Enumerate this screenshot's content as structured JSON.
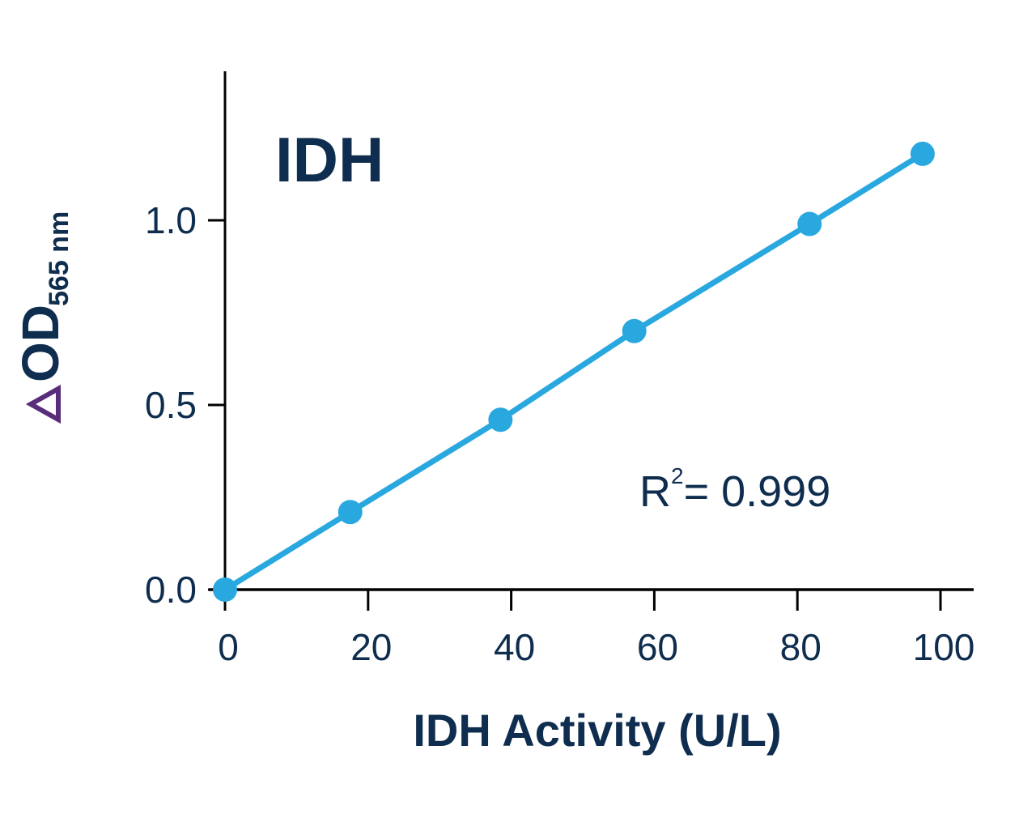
{
  "chart_data": {
    "type": "line",
    "title": "IDH",
    "xlabel": "IDH Activity (U/L)",
    "ylabel": "ΔOD 565 nm",
    "ylabel_parts": {
      "delta": "Δ",
      "main": "OD",
      "subscript": "565 nm"
    },
    "x_ticks": [
      "0",
      "20",
      "40",
      "60",
      "80",
      "100"
    ],
    "y_ticks": [
      "0.0",
      "0.5",
      "1.0"
    ],
    "xlim": [
      0,
      100
    ],
    "ylim": [
      0,
      1.4
    ],
    "grid": false,
    "legend": null,
    "series": [
      {
        "name": "IDH",
        "color": "#29a8e0",
        "marker": "circle",
        "x": [
          0,
          17.5,
          38.5,
          57.2,
          81.7,
          97.5
        ],
        "y": [
          0.0,
          0.21,
          0.46,
          0.7,
          0.99,
          1.18
        ]
      }
    ],
    "annotations": [
      {
        "text": "R² = 0.999",
        "base": "R",
        "superscript": "2",
        "rest": "= 0.999",
        "x": 58,
        "y": 0.27
      }
    ]
  },
  "colors": {
    "axis": "#000000",
    "text": "#0f2d4e",
    "series": "#29a8e0",
    "delta": "#5a2d7a"
  }
}
